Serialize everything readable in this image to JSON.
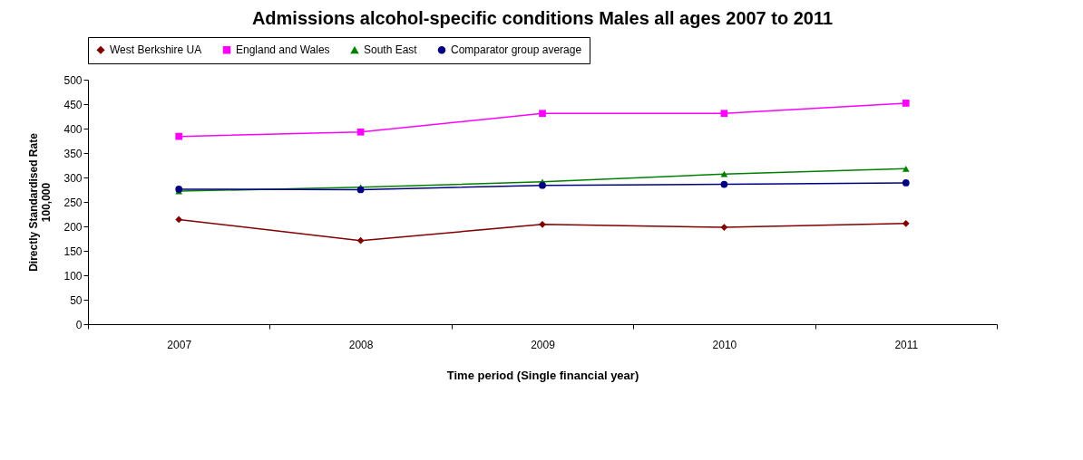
{
  "chart_data": {
    "type": "line",
    "title": "Admissions alcohol-specific conditions Males all ages 2007 to 2011",
    "xlabel": "Time period (Single financial year)",
    "ylabel": "Directly Standardised Rate\n100,000",
    "categories": [
      "2007",
      "2008",
      "2009",
      "2010",
      "2011"
    ],
    "ylim": [
      0,
      500
    ],
    "yticks": [
      0,
      50,
      100,
      150,
      200,
      250,
      300,
      350,
      400,
      450,
      500
    ],
    "grid": false,
    "legend": "top",
    "line_style": "solid",
    "series": [
      {
        "name": "West Berkshire UA",
        "color": "#800000",
        "marker": "diamond",
        "values": [
          214,
          171,
          204,
          198,
          206
        ]
      },
      {
        "name": "England and Wales",
        "color": "#ff00ff",
        "marker": "square",
        "values": [
          384,
          393,
          431,
          431,
          452
        ]
      },
      {
        "name": "South East",
        "color": "#008000",
        "marker": "triangle",
        "values": [
          272,
          280,
          291,
          307,
          318
        ]
      },
      {
        "name": "Comparator group average",
        "color": "#000080",
        "marker": "circle",
        "values": [
          276,
          275,
          284,
          286,
          289
        ]
      }
    ]
  }
}
